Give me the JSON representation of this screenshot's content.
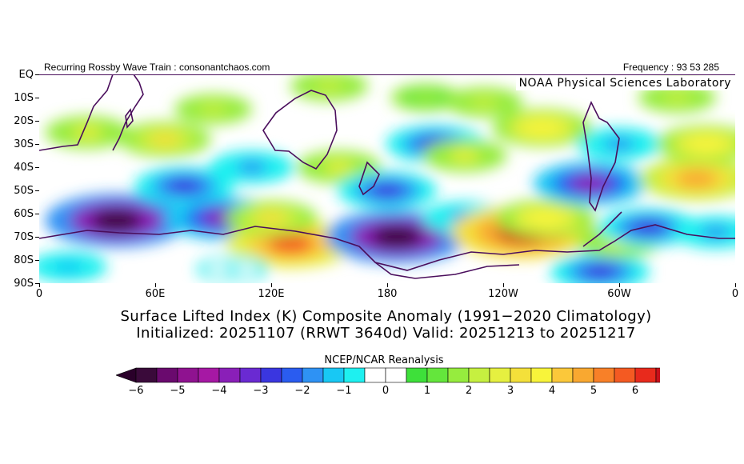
{
  "header": {
    "left_text": "Recurring Rossby Wave Train : consonantchaos.com",
    "right_text": "Frequency : 93 53 285"
  },
  "map": {
    "credit": "NOAA Physical Sciences Laboratory",
    "lat_labels": [
      "EQ",
      "10S",
      "20S",
      "30S",
      "40S",
      "50S",
      "60S",
      "70S",
      "80S",
      "90S"
    ],
    "lon_labels": [
      "0",
      "60E",
      "120E",
      "180",
      "120W",
      "60W",
      "0"
    ],
    "outline_color": "#4a0e5c"
  },
  "title": {
    "line1": "Surface Lifted Index (K) Composite Anomaly (1991−2020 Climatology)",
    "line2": "Initialized: 20251107 (RRWT 3640d) Valid: 20251213 to 20251217"
  },
  "colorbar": {
    "source_label": "NCEP/NCAR Reanalysis",
    "tick_labels": [
      "−6",
      "−5",
      "−4",
      "−3",
      "−2",
      "−1",
      "0",
      "1",
      "2",
      "3",
      "4",
      "5",
      "6"
    ],
    "colors": [
      "#3a0a3a",
      "#6a0a6e",
      "#8f1290",
      "#a618a4",
      "#8a1fb8",
      "#6a2ad2",
      "#3a36e0",
      "#2a5cf0",
      "#2e92f4",
      "#18c8f4",
      "#1ef0f0",
      "#ffffff",
      "#ffffff",
      "#3ee03a",
      "#64e63c",
      "#96ec3e",
      "#c6f040",
      "#e6f040",
      "#f4e03a",
      "#f8f43a",
      "#fbc83a",
      "#f9a830",
      "#f88028",
      "#f45a22",
      "#e82a1c",
      "#c8101a"
    ],
    "under_color": "#2a002a",
    "over_color": "#b00000"
  },
  "chart_data": {
    "type": "heatmap",
    "title": "Surface Lifted Index (K) Composite Anomaly (1991−2020 Climatology)",
    "units": "K",
    "color_range": [
      -6,
      6
    ],
    "lat_range": [
      -90,
      0
    ],
    "lon_range": [
      0,
      360
    ],
    "anomaly_features": [
      {
        "lon": 40,
        "lat": -63,
        "value": -6
      },
      {
        "lon": 75,
        "lat": -48,
        "value": -3
      },
      {
        "lon": 95,
        "lat": -62,
        "value": -4
      },
      {
        "lon": 110,
        "lat": -40,
        "value": -2
      },
      {
        "lon": 65,
        "lat": -28,
        "value": 2.5
      },
      {
        "lon": 25,
        "lat": -25,
        "value": 2
      },
      {
        "lon": 130,
        "lat": -73,
        "value": 5
      },
      {
        "lon": 120,
        "lat": -62,
        "value": 2.5
      },
      {
        "lon": 155,
        "lat": -40,
        "value": 2
      },
      {
        "lon": 185,
        "lat": -70,
        "value": -6
      },
      {
        "lon": 180,
        "lat": -50,
        "value": -3
      },
      {
        "lon": 205,
        "lat": -30,
        "value": -3
      },
      {
        "lon": 220,
        "lat": -35,
        "value": 2
      },
      {
        "lon": 220,
        "lat": -62,
        "value": -2
      },
      {
        "lon": 250,
        "lat": -68,
        "value": 6
      },
      {
        "lon": 262,
        "lat": -62,
        "value": 3
      },
      {
        "lon": 285,
        "lat": -47,
        "value": -4
      },
      {
        "lon": 300,
        "lat": -30,
        "value": -2
      },
      {
        "lon": 290,
        "lat": -85,
        "value": -3
      },
      {
        "lon": 300,
        "lat": -72,
        "value": 2
      },
      {
        "lon": 340,
        "lat": -45,
        "value": 4
      },
      {
        "lon": 345,
        "lat": -30,
        "value": 3
      },
      {
        "lon": 260,
        "lat": -23,
        "value": 3
      },
      {
        "lon": 230,
        "lat": -12,
        "value": 1.5
      },
      {
        "lon": 200,
        "lat": -10,
        "value": 1
      },
      {
        "lon": 315,
        "lat": -66,
        "value": -3
      },
      {
        "lon": 350,
        "lat": -68,
        "value": -2
      },
      {
        "lon": 90,
        "lat": -15,
        "value": 1.5
      },
      {
        "lon": 150,
        "lat": -5,
        "value": 1.5
      },
      {
        "lon": 15,
        "lat": -83,
        "value": -1.5
      },
      {
        "lon": 100,
        "lat": -84,
        "value": -1
      },
      {
        "lon": 330,
        "lat": -10,
        "value": 1.5
      }
    ]
  }
}
